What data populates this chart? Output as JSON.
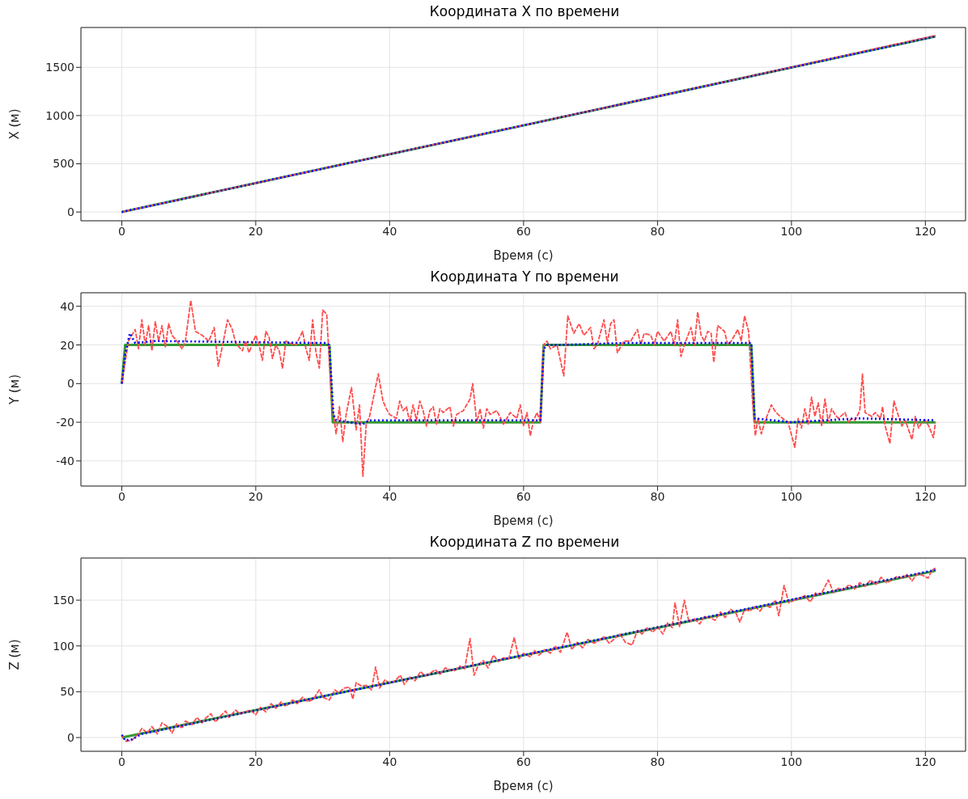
{
  "chart_data": [
    {
      "type": "line",
      "title": "Координата X по времени",
      "xlabel": "Время (с)",
      "ylabel": "X (м)",
      "xlim": [
        -6.1,
        126
      ],
      "xticks": [
        0,
        20,
        40,
        60,
        80,
        100,
        120
      ],
      "ylim": [
        -91,
        1913
      ],
      "yticks": [
        0,
        500,
        1000,
        1500
      ],
      "grid": true,
      "series": [
        {
          "color": "#339933",
          "line_style": "solid",
          "x": [
            0,
            121.5
          ],
          "values": [
            0,
            1820
          ]
        },
        {
          "color": "#ff4d4d",
          "line_style": "dashed",
          "x": [
            0,
            30,
            60,
            90,
            121.5
          ],
          "values": [
            0,
            450,
            900,
            1350,
            1830
          ]
        },
        {
          "color": "#0000ff",
          "line_style": "dotted",
          "x": [
            0,
            121.5
          ],
          "values": [
            0,
            1820
          ]
        }
      ]
    },
    {
      "type": "line",
      "title": "Координата Y по времени",
      "xlabel": "Время (с)",
      "ylabel": "Y (м)",
      "xlim": [
        -6.1,
        126
      ],
      "xticks": [
        0,
        20,
        40,
        60,
        80,
        100,
        120
      ],
      "ylim": [
        -53,
        47
      ],
      "yticks": [
        -40,
        -20,
        0,
        20,
        40
      ],
      "grid": true,
      "series": [
        {
          "color": "#339933",
          "line_style": "solid",
          "x": [
            0,
            0.5,
            31,
            31.5,
            62.5,
            63,
            94,
            94.5,
            121.5
          ],
          "values": [
            0,
            20,
            20,
            -20,
            -20,
            20,
            20,
            -20,
            -20
          ]
        },
        {
          "color": "#ff4d4d",
          "line_style": "dashed",
          "x": [
            0,
            1,
            2,
            2.5,
            3,
            3.5,
            4,
            4.5,
            5,
            5.5,
            6,
            6.5,
            7,
            7.5,
            8,
            9,
            9.5,
            10.3,
            11,
            12,
            13,
            13.8,
            14.4,
            15,
            15.8,
            16.5,
            17,
            18,
            18.5,
            19,
            20,
            20.5,
            21,
            21.5,
            22,
            22.5,
            23,
            23.5,
            24,
            24.5,
            25,
            26,
            27,
            27.5,
            28,
            28.5,
            29,
            29.5,
            30,
            30.6,
            31.3,
            32,
            32.5,
            33,
            33.5,
            34.3,
            35,
            35.5,
            36,
            36.5,
            37,
            38.3,
            39,
            39.5,
            40,
            41,
            41.5,
            42,
            42.5,
            43,
            43.5,
            44,
            44.5,
            45,
            45.5,
            46,
            46.5,
            47,
            47.5,
            48,
            49,
            49.5,
            50,
            51,
            52,
            52.4,
            53,
            53.5,
            54,
            54.5,
            55,
            56,
            57,
            58,
            59,
            59.5,
            60,
            60.5,
            61,
            61.5,
            62,
            62.5,
            63,
            63.5,
            64,
            65,
            66,
            66.6,
            67.5,
            68.3,
            69,
            70,
            70.5,
            71,
            72,
            72.5,
            73,
            73.5,
            74,
            75,
            76,
            77,
            77.5,
            78,
            79,
            79.5,
            80,
            81,
            82,
            82.5,
            83,
            83.5,
            84,
            85,
            85.5,
            86,
            86.5,
            87,
            87.5,
            88,
            88.4,
            89,
            90,
            90.5,
            91,
            92,
            92.5,
            93,
            93.6,
            94.2,
            94.6,
            95,
            95.5,
            96,
            97,
            97.5,
            98,
            99,
            99.5,
            100.5,
            101,
            101.5,
            102,
            102.5,
            103,
            103.5,
            104,
            104.5,
            105,
            105.5,
            106,
            106.5,
            107,
            108,
            108.5,
            109,
            109.5,
            110.2,
            110.6,
            111,
            112,
            112.5,
            113.3,
            113.6,
            114,
            114.7,
            115.3,
            116,
            116.5,
            117,
            118,
            118.5,
            119,
            119.5,
            120,
            120.5,
            121.2,
            121.5
          ],
          "values": [
            0,
            22,
            28,
            18,
            33,
            20,
            30,
            17,
            32,
            22,
            30,
            19,
            31,
            25,
            23,
            18,
            22,
            43,
            27,
            25,
            22,
            29,
            9,
            19,
            33,
            28,
            21,
            17,
            22,
            16,
            25,
            20,
            12,
            27,
            24,
            13,
            20,
            17,
            8,
            22,
            21,
            20,
            27,
            18,
            12,
            33,
            16,
            8,
            38,
            36,
            -8,
            -26,
            -12,
            -30,
            -16,
            -2,
            -24,
            -11,
            -48,
            -21,
            -17,
            5,
            -9,
            -13,
            -16,
            -18,
            -9,
            -14,
            -12,
            -20,
            -11,
            -19,
            -9,
            -14,
            -22,
            -14,
            -12,
            -21,
            -13,
            -15,
            -12,
            -22,
            -16,
            -14,
            -8,
            0,
            -20,
            -13,
            -23,
            -13,
            -16,
            -14,
            -21,
            -15,
            -18,
            -11,
            -22,
            -15,
            -27,
            -19,
            -15,
            -20,
            20,
            22,
            18,
            20,
            4,
            35,
            26,
            31,
            25,
            29,
            18,
            20,
            33,
            21,
            31,
            33,
            16,
            22,
            22,
            28,
            20,
            26,
            25,
            20,
            27,
            22,
            27,
            20,
            33,
            14,
            20,
            29,
            20,
            37,
            25,
            22,
            27,
            26,
            11,
            30,
            27,
            20,
            22,
            28,
            22,
            35,
            27,
            -10,
            -27,
            -18,
            -26,
            -20,
            -11,
            -14,
            -16,
            -19,
            -20,
            -33,
            -18,
            -23,
            -13,
            -21,
            -7,
            -17,
            -10,
            -22,
            -8,
            -20,
            -13,
            -16,
            -18,
            -15,
            -20,
            -18,
            -19,
            -14,
            5,
            -15,
            -17,
            -15,
            -18,
            -12,
            -22,
            -31,
            -9,
            -17,
            -22,
            -19,
            -29,
            -17,
            -23,
            -20,
            -19,
            -22,
            -28,
            -20
          ]
        },
        {
          "color": "#0000ff",
          "line_style": "dotted",
          "x": [
            0,
            0.5,
            1.2,
            2,
            5,
            30.5,
            31,
            31.6,
            32,
            36,
            37,
            62.5,
            63,
            63.5,
            65,
            75,
            94,
            94.5,
            100,
            110,
            121.5
          ],
          "values": [
            0,
            15,
            26,
            21,
            22,
            21,
            20,
            -16,
            -19,
            -21,
            -19,
            -19,
            18,
            20,
            20,
            21,
            21,
            -18,
            -20,
            -18,
            -19
          ]
        }
      ]
    },
    {
      "type": "line",
      "title": "Координата Z по времени",
      "xlabel": "Время (с)",
      "ylabel": "Z (м)",
      "xlim": [
        -6.1,
        126
      ],
      "xticks": [
        0,
        20,
        40,
        60,
        80,
        100,
        120
      ],
      "ylim": [
        -15,
        196
      ],
      "yticks": [
        0,
        50,
        100,
        150
      ],
      "grid": true,
      "series": [
        {
          "color": "#339933",
          "line_style": "solid",
          "x": [
            0,
            121.5
          ],
          "values": [
            0,
            182
          ]
        },
        {
          "color": "#ff4d4d",
          "line_style": "dashed",
          "x": [
            0,
            0.6,
            1.5,
            2.5,
            3,
            3.8,
            4.5,
            5.3,
            6,
            7,
            7.5,
            8.2,
            9,
            9.5,
            10.5,
            11.2,
            12,
            12.5,
            13.3,
            14,
            14.8,
            15.5,
            16,
            17,
            17.6,
            18.4,
            19.2,
            20,
            20.7,
            21.5,
            22.3,
            23,
            23.8,
            24.5,
            25.5,
            26.2,
            27,
            27.8,
            28.6,
            29.5,
            30,
            31,
            31.8,
            32.4,
            33.2,
            34,
            34.5,
            35,
            35.8,
            36.5,
            37.3,
            37.9,
            38.5,
            39.3,
            40,
            40.8,
            41.6,
            42.2,
            43,
            43.8,
            44.6,
            45.3,
            46,
            46.8,
            47.5,
            48.3,
            49,
            49.7,
            50.5,
            51.2,
            52,
            52.6,
            53.3,
            54,
            54.7,
            55.5,
            56.2,
            57,
            57.8,
            58.6,
            59.3,
            60,
            61,
            61.6,
            62.3,
            63.2,
            64,
            64.7,
            65.5,
            66.5,
            67.2,
            68,
            68.8,
            69.6,
            70.5,
            71.3,
            72,
            72.8,
            73.6,
            74.4,
            75.2,
            76.2,
            77,
            77.7,
            78.5,
            79.3,
            80,
            80.8,
            81.5,
            82.2,
            82.6,
            83.3,
            84,
            84.7,
            85.5,
            86.3,
            87,
            87.8,
            88.6,
            89.4,
            90.1,
            90.9,
            91.7,
            92.3,
            93,
            93.8,
            94.5,
            95.3,
            96,
            96.8,
            97.6,
            98.1,
            98.9,
            99.6,
            100.4,
            101.2,
            102,
            102.8,
            103.6,
            104.4,
            105.5,
            106.3,
            107,
            107.8,
            108.6,
            109.4,
            110.2,
            111,
            111.8,
            112.6,
            113.4,
            114.2,
            115,
            115.8,
            116.5,
            117.3,
            118,
            118.8,
            119.6,
            120.4,
            121,
            121.5
          ],
          "values": [
            2,
            -4,
            -3,
            4,
            10,
            5,
            12,
            4,
            16,
            11,
            5,
            15,
            10,
            18,
            14,
            22,
            16,
            21,
            26,
            17,
            24,
            29,
            22,
            30,
            26,
            28,
            30,
            25,
            33,
            28,
            37,
            32,
            39,
            34,
            41,
            37,
            44,
            39,
            42,
            52,
            44,
            41,
            52,
            49,
            54,
            55,
            42,
            60,
            56,
            57,
            52,
            77,
            54,
            63,
            59,
            62,
            68,
            58,
            66,
            62,
            72,
            67,
            70,
            74,
            69,
            76,
            74,
            73,
            78,
            75,
            108,
            68,
            80,
            84,
            76,
            90,
            83,
            87,
            86,
            109,
            86,
            92,
            88,
            95,
            90,
            96,
            92,
            100,
            93,
            115,
            96,
            104,
            98,
            107,
            103,
            106,
            110,
            103,
            108,
            113,
            104,
            101,
            117,
            113,
            120,
            115,
            121,
            113,
            125,
            120,
            147,
            121,
            150,
            126,
            130,
            124,
            132,
            131,
            128,
            137,
            131,
            140,
            136,
            126,
            140,
            138,
            143,
            138,
            145,
            142,
            150,
            133,
            166,
            147,
            150,
            152,
            155,
            148,
            158,
            156,
            172,
            158,
            163,
            161,
            167,
            162,
            169,
            165,
            172,
            167,
            175,
            169,
            172,
            176,
            174,
            178,
            171,
            179,
            177,
            174,
            183,
            185
          ]
        },
        {
          "color": "#0000ff",
          "line_style": "dotted",
          "x": [
            0,
            0.5,
            1.5,
            3,
            121.5
          ],
          "values": [
            3,
            -3,
            -2,
            4,
            183
          ]
        }
      ]
    }
  ]
}
